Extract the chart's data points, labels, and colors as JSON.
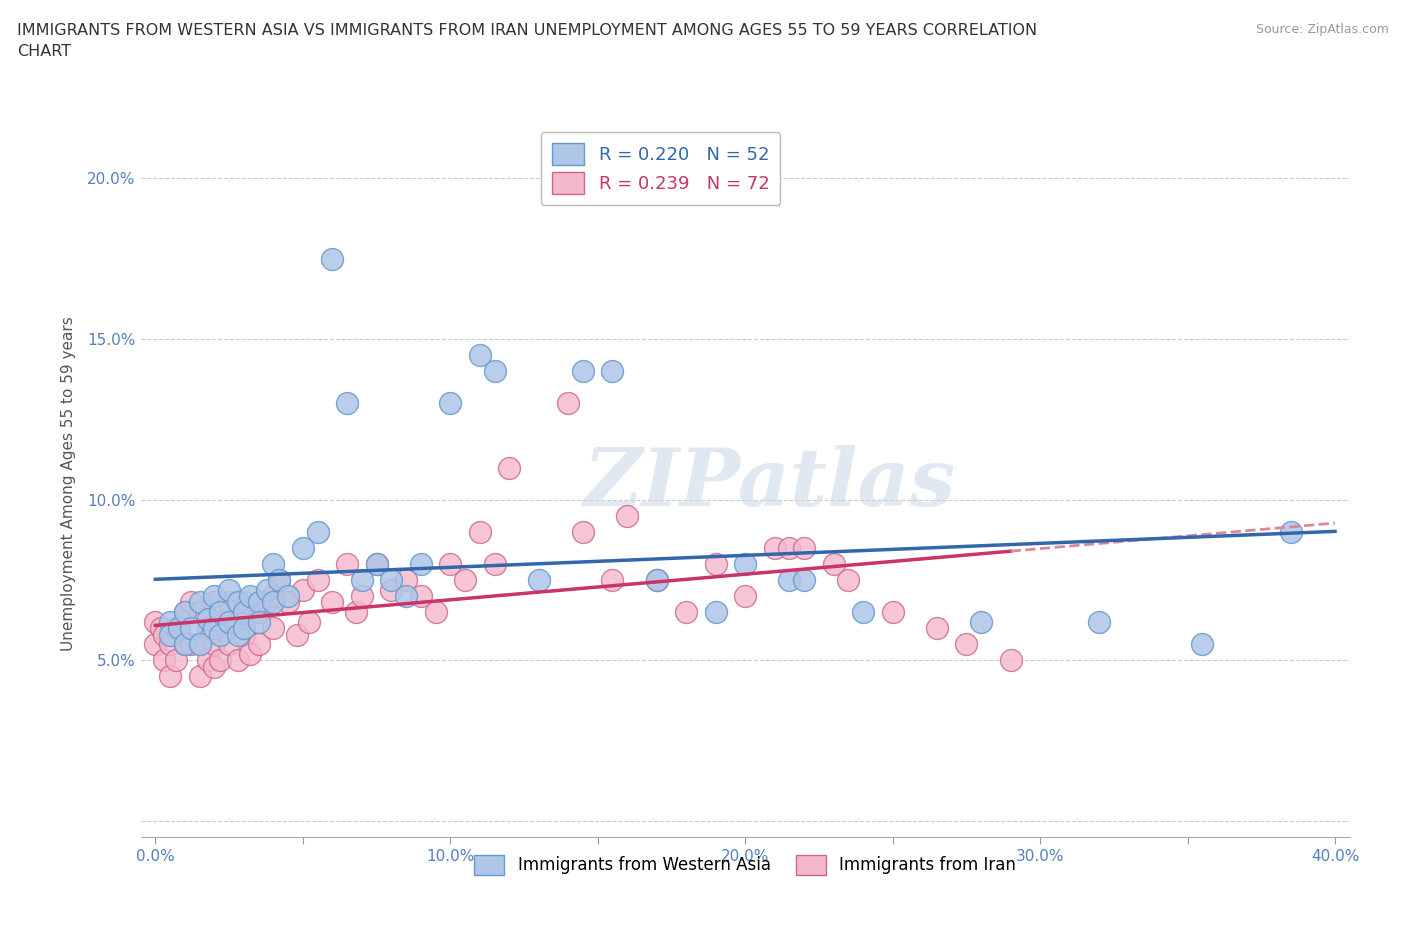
{
  "title": "IMMIGRANTS FROM WESTERN ASIA VS IMMIGRANTS FROM IRAN UNEMPLOYMENT AMONG AGES 55 TO 59 YEARS CORRELATION\nCHART",
  "source": "Source: ZipAtlas.com",
  "ylabel": "Unemployment Among Ages 55 to 59 years",
  "xlim": [
    -0.005,
    0.405
  ],
  "ylim": [
    -0.005,
    0.215
  ],
  "xticks": [
    0.0,
    0.05,
    0.1,
    0.15,
    0.2,
    0.25,
    0.3,
    0.35,
    0.4
  ],
  "xticklabels": [
    "0.0%",
    "",
    "10.0%",
    "",
    "20.0%",
    "",
    "30.0%",
    "",
    "40.0%"
  ],
  "yticks": [
    0.0,
    0.05,
    0.1,
    0.15,
    0.2
  ],
  "yticklabels": [
    "",
    "5.0%",
    "10.0%",
    "15.0%",
    "20.0%"
  ],
  "blue_color": "#aec6e8",
  "blue_edge": "#6699cc",
  "blue_line_color": "#3366aa",
  "pink_color": "#f4b8cc",
  "pink_edge": "#cc6688",
  "pink_line_color": "#cc3366",
  "pink_dash_color": "#dd8899",
  "R_blue": 0.22,
  "N_blue": 52,
  "R_pink": 0.239,
  "N_pink": 72,
  "legend_label_blue": "Immigrants from Western Asia",
  "legend_label_pink": "Immigrants from Iran",
  "watermark": "ZIPatlas",
  "blue_scatter_x": [
    0.005,
    0.005,
    0.008,
    0.01,
    0.01,
    0.012,
    0.015,
    0.015,
    0.018,
    0.02,
    0.02,
    0.022,
    0.022,
    0.025,
    0.025,
    0.028,
    0.028,
    0.03,
    0.03,
    0.032,
    0.035,
    0.035,
    0.038,
    0.04,
    0.04,
    0.042,
    0.045,
    0.05,
    0.055,
    0.06,
    0.065,
    0.07,
    0.075,
    0.08,
    0.085,
    0.09,
    0.1,
    0.11,
    0.115,
    0.13,
    0.145,
    0.155,
    0.17,
    0.19,
    0.2,
    0.215,
    0.22,
    0.24,
    0.28,
    0.32,
    0.355,
    0.385
  ],
  "blue_scatter_y": [
    0.062,
    0.058,
    0.06,
    0.065,
    0.055,
    0.06,
    0.068,
    0.055,
    0.063,
    0.07,
    0.06,
    0.065,
    0.058,
    0.072,
    0.062,
    0.068,
    0.058,
    0.065,
    0.06,
    0.07,
    0.068,
    0.062,
    0.072,
    0.08,
    0.068,
    0.075,
    0.07,
    0.085,
    0.09,
    0.175,
    0.13,
    0.075,
    0.08,
    0.075,
    0.07,
    0.08,
    0.13,
    0.145,
    0.14,
    0.075,
    0.14,
    0.14,
    0.075,
    0.065,
    0.08,
    0.075,
    0.075,
    0.065,
    0.062,
    0.062,
    0.055,
    0.09
  ],
  "pink_scatter_x": [
    0.0,
    0.0,
    0.002,
    0.003,
    0.003,
    0.005,
    0.005,
    0.007,
    0.007,
    0.01,
    0.01,
    0.012,
    0.012,
    0.015,
    0.015,
    0.015,
    0.018,
    0.018,
    0.02,
    0.02,
    0.02,
    0.022,
    0.022,
    0.025,
    0.025,
    0.028,
    0.028,
    0.03,
    0.03,
    0.032,
    0.035,
    0.035,
    0.038,
    0.04,
    0.04,
    0.042,
    0.045,
    0.048,
    0.05,
    0.052,
    0.055,
    0.06,
    0.065,
    0.068,
    0.07,
    0.075,
    0.08,
    0.085,
    0.09,
    0.095,
    0.1,
    0.105,
    0.11,
    0.115,
    0.12,
    0.14,
    0.145,
    0.155,
    0.16,
    0.17,
    0.18,
    0.19,
    0.2,
    0.21,
    0.215,
    0.22,
    0.23,
    0.235,
    0.25,
    0.265,
    0.275,
    0.29
  ],
  "pink_scatter_y": [
    0.062,
    0.055,
    0.06,
    0.058,
    0.05,
    0.055,
    0.045,
    0.06,
    0.05,
    0.065,
    0.055,
    0.068,
    0.055,
    0.065,
    0.055,
    0.045,
    0.06,
    0.05,
    0.068,
    0.055,
    0.048,
    0.062,
    0.05,
    0.068,
    0.055,
    0.062,
    0.05,
    0.068,
    0.058,
    0.052,
    0.065,
    0.055,
    0.068,
    0.07,
    0.06,
    0.075,
    0.068,
    0.058,
    0.072,
    0.062,
    0.075,
    0.068,
    0.08,
    0.065,
    0.07,
    0.08,
    0.072,
    0.075,
    0.07,
    0.065,
    0.08,
    0.075,
    0.09,
    0.08,
    0.11,
    0.13,
    0.09,
    0.075,
    0.095,
    0.075,
    0.065,
    0.08,
    0.07,
    0.085,
    0.085,
    0.085,
    0.08,
    0.075,
    0.065,
    0.06,
    0.055,
    0.05
  ]
}
